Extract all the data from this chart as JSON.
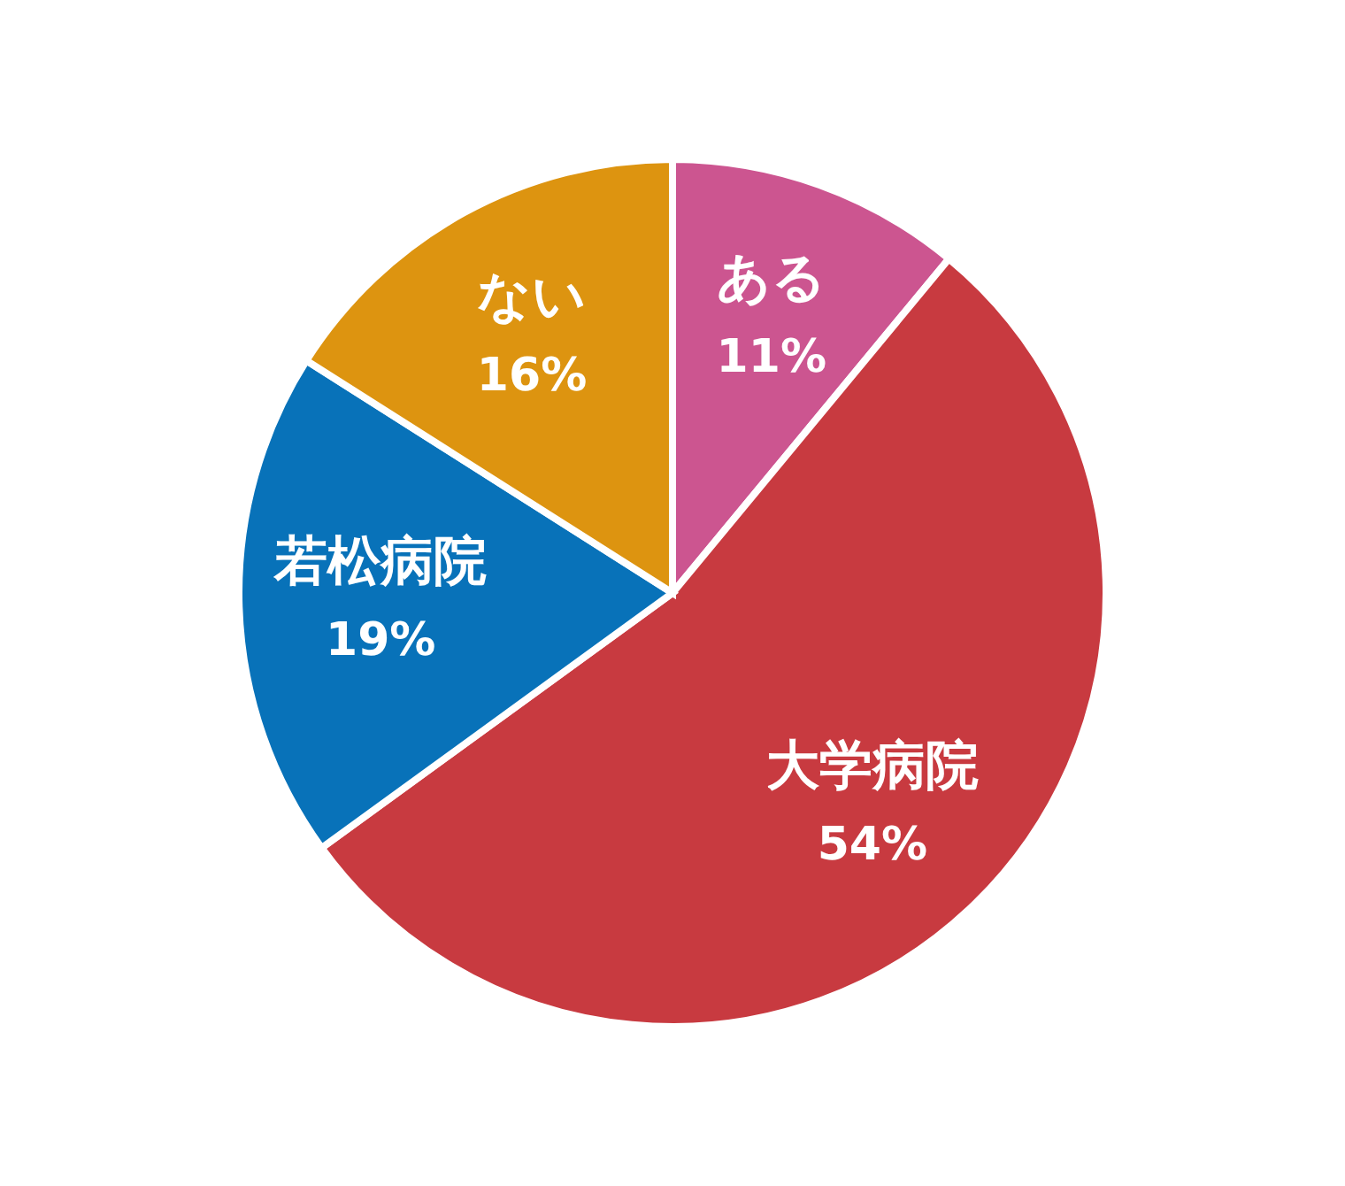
{
  "chart_data": {
    "type": "pie",
    "categories": [
      "ある",
      "大学病院",
      "若松病院",
      "ない"
    ],
    "values": [
      11,
      54,
      19,
      16
    ],
    "colors": [
      "#cc5590",
      "#c83a40",
      "#0872b9",
      "#dd9410"
    ],
    "value_labels": [
      "11%",
      "54%",
      "19%",
      "16%"
    ]
  }
}
